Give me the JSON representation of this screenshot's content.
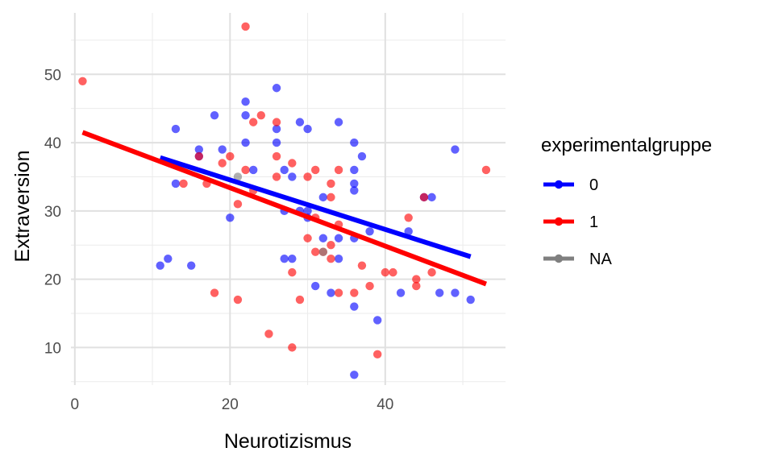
{
  "chart_data": {
    "type": "scatter",
    "xlabel": "Neurotizismus",
    "ylabel": "Extraversion",
    "xlim": [
      -0.5,
      55.5
    ],
    "ylim": [
      4.5,
      59
    ],
    "x_ticks": [
      0,
      20,
      40
    ],
    "y_ticks": [
      10,
      20,
      30,
      40,
      50
    ],
    "grid": true,
    "legend_position": "right",
    "legend_title": "experimentalgruppe",
    "series": [
      {
        "name": "0",
        "color": "#0000ff",
        "points": [
          [
            11,
            22
          ],
          [
            12,
            23
          ],
          [
            13,
            34
          ],
          [
            13,
            42
          ],
          [
            15,
            22
          ],
          [
            16,
            39
          ],
          [
            16,
            38
          ],
          [
            18,
            44
          ],
          [
            19,
            39
          ],
          [
            20,
            29
          ],
          [
            22,
            44
          ],
          [
            22,
            40
          ],
          [
            22,
            46
          ],
          [
            23,
            36
          ],
          [
            26,
            48
          ],
          [
            26,
            42
          ],
          [
            26,
            40
          ],
          [
            27,
            36
          ],
          [
            27,
            30
          ],
          [
            27,
            23
          ],
          [
            28,
            35
          ],
          [
            28,
            23
          ],
          [
            29,
            30
          ],
          [
            29,
            43
          ],
          [
            30,
            42
          ],
          [
            30,
            29
          ],
          [
            30,
            30
          ],
          [
            31,
            19
          ],
          [
            32,
            32
          ],
          [
            32,
            26
          ],
          [
            33,
            18
          ],
          [
            34,
            23
          ],
          [
            34,
            43
          ],
          [
            34,
            26
          ],
          [
            36,
            40
          ],
          [
            36,
            36
          ],
          [
            36,
            34
          ],
          [
            36,
            33
          ],
          [
            36,
            26
          ],
          [
            36,
            16
          ],
          [
            36,
            6
          ],
          [
            37,
            38
          ],
          [
            38,
            27
          ],
          [
            39,
            14
          ],
          [
            42,
            18
          ],
          [
            43,
            27
          ],
          [
            45,
            32
          ],
          [
            46,
            32
          ],
          [
            47,
            18
          ],
          [
            49,
            39
          ],
          [
            49,
            18
          ],
          [
            51,
            17
          ]
        ],
        "trend": {
          "x": [
            11,
            51
          ],
          "y": [
            37.8,
            23.3
          ]
        }
      },
      {
        "name": "1",
        "color": "#ff0000",
        "points": [
          [
            1,
            49
          ],
          [
            14,
            34
          ],
          [
            16,
            38
          ],
          [
            17,
            34
          ],
          [
            18,
            18
          ],
          [
            19,
            37
          ],
          [
            20,
            38
          ],
          [
            21,
            31
          ],
          [
            21,
            17
          ],
          [
            22,
            36
          ],
          [
            22,
            57
          ],
          [
            23,
            43
          ],
          [
            23,
            33
          ],
          [
            24,
            44
          ],
          [
            25,
            12
          ],
          [
            26,
            43
          ],
          [
            26,
            38
          ],
          [
            26,
            35
          ],
          [
            28,
            37
          ],
          [
            28,
            21
          ],
          [
            28,
            10
          ],
          [
            29,
            17
          ],
          [
            30,
            35
          ],
          [
            30,
            26
          ],
          [
            31,
            36
          ],
          [
            31,
            29
          ],
          [
            31,
            24
          ],
          [
            32,
            24
          ],
          [
            33,
            34
          ],
          [
            33,
            32
          ],
          [
            33,
            25
          ],
          [
            33,
            23
          ],
          [
            34,
            36
          ],
          [
            34,
            28
          ],
          [
            34,
            18
          ],
          [
            36,
            18
          ],
          [
            37,
            22
          ],
          [
            38,
            19
          ],
          [
            39,
            9
          ],
          [
            40,
            21
          ],
          [
            41,
            21
          ],
          [
            43,
            29
          ],
          [
            44,
            20
          ],
          [
            44,
            19
          ],
          [
            45,
            32
          ],
          [
            46,
            21
          ],
          [
            53,
            36
          ]
        ],
        "trend": {
          "x": [
            1,
            53
          ],
          "y": [
            41.5,
            19.3
          ]
        }
      },
      {
        "name": "NA",
        "color": "#7f7f7f",
        "points": [
          [
            21,
            35
          ],
          [
            32,
            24
          ]
        ]
      }
    ]
  }
}
